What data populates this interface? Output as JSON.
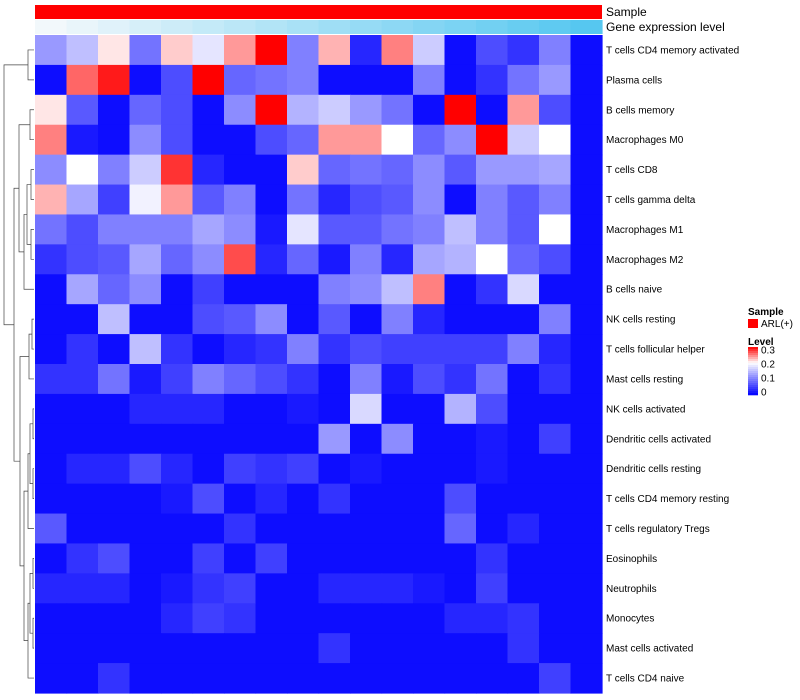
{
  "chart_data": {
    "type": "heatmap",
    "title": "",
    "annotation_tracks": [
      {
        "name": "Sample",
        "color": "#FF0000",
        "description": "single sample group bar"
      },
      {
        "name": "Gene expression level",
        "colors_low_to_high": [
          "#F2F8FB",
          "#56C7F0"
        ],
        "description": "gradient track"
      }
    ],
    "rows": [
      "T cells CD4 memory activated",
      "Plasma cells",
      "B cells memory",
      "Macrophages M0",
      "T cells CD8",
      "T cells gamma delta",
      "Macrophages M1",
      "Macrophages M2",
      "B cells naive",
      "NK cells resting",
      "T cells follicular helper",
      "Mast cells resting",
      "NK cells activated",
      "Dendritic cells activated",
      "Dendritic cells resting",
      "T cells CD4 memory resting",
      "T cells regulatory  Tregs",
      "Eosinophils",
      "Neutrophils",
      "Monocytes",
      "Mast cells activated",
      "T cells CD4 naive"
    ],
    "n_columns": 18,
    "values": [
      [
        0.12,
        0.15,
        0.21,
        0.09,
        0.22,
        0.18,
        0.24,
        0.3,
        0.1,
        0.23,
        0.03,
        0.25,
        0.16,
        0.01,
        0.06,
        0.04,
        0.1,
        null
      ],
      [
        0.01,
        0.26,
        0.29,
        0.01,
        0.06,
        0.3,
        0.08,
        0.09,
        0.1,
        0.01,
        0.01,
        0.01,
        0.1,
        0.01,
        0.04,
        0.09,
        0.12,
        null
      ],
      [
        0.21,
        0.07,
        0.01,
        0.08,
        0.06,
        0.01,
        0.11,
        0.3,
        0.14,
        0.16,
        0.12,
        0.09,
        0.01,
        0.3,
        0.01,
        0.24,
        0.06,
        null
      ],
      [
        0.25,
        0.02,
        0.01,
        0.11,
        0.06,
        0.01,
        0.01,
        0.06,
        0.08,
        0.24,
        0.24,
        0.2,
        0.08,
        0.11,
        0.3,
        0.16,
        0.2,
        null
      ],
      [
        0.11,
        0.2,
        0.1,
        0.16,
        0.28,
        0.03,
        0.01,
        0.01,
        0.22,
        0.08,
        0.09,
        0.08,
        0.11,
        0.07,
        0.12,
        0.12,
        0.13,
        null
      ],
      [
        0.23,
        0.13,
        0.05,
        0.19,
        0.24,
        0.07,
        0.1,
        0.01,
        0.09,
        0.03,
        0.06,
        0.07,
        0.11,
        0.01,
        0.1,
        0.07,
        0.1,
        null
      ],
      [
        0.09,
        0.06,
        0.1,
        0.1,
        0.1,
        0.13,
        0.11,
        0.02,
        0.18,
        0.07,
        0.07,
        0.09,
        0.1,
        0.15,
        0.1,
        0.07,
        0.2,
        null
      ],
      [
        0.04,
        0.06,
        0.07,
        0.13,
        0.08,
        0.11,
        0.27,
        0.03,
        0.08,
        0.02,
        0.1,
        0.03,
        0.13,
        0.14,
        0.2,
        0.08,
        0.06,
        null
      ],
      [
        0.01,
        0.13,
        0.08,
        0.11,
        0.01,
        0.05,
        0.01,
        0.01,
        0.01,
        0.1,
        0.11,
        0.15,
        0.25,
        0.01,
        0.04,
        0.17,
        0.01,
        null
      ],
      [
        0.01,
        0.01,
        0.15,
        0.01,
        0.01,
        0.06,
        0.07,
        0.11,
        0.01,
        0.07,
        0.01,
        0.1,
        0.03,
        0.01,
        0.01,
        0.01,
        0.1,
        null
      ],
      [
        0.01,
        0.04,
        0.01,
        0.15,
        0.04,
        0.01,
        0.03,
        0.04,
        0.1,
        0.04,
        0.06,
        0.05,
        0.05,
        0.05,
        0.05,
        0.1,
        0.03,
        null
      ],
      [
        0.04,
        0.04,
        0.09,
        0.02,
        0.05,
        0.1,
        0.08,
        0.06,
        0.04,
        0.01,
        0.1,
        0.02,
        0.06,
        0.04,
        0.09,
        0.01,
        0.04,
        null
      ],
      [
        0.01,
        0.01,
        0.01,
        0.03,
        0.03,
        0.03,
        0.01,
        0.01,
        0.02,
        0.01,
        0.17,
        0.01,
        0.01,
        0.14,
        0.06,
        0.01,
        0.01,
        null
      ],
      [
        0.01,
        0.01,
        0.01,
        0.01,
        0.01,
        0.01,
        0.01,
        0.01,
        0.01,
        0.12,
        0.01,
        0.11,
        0.01,
        0.01,
        0.02,
        0.01,
        0.05,
        null
      ],
      [
        0.01,
        0.03,
        0.03,
        0.06,
        0.03,
        0.01,
        0.05,
        0.04,
        0.05,
        0.01,
        0.02,
        0.01,
        0.01,
        0.01,
        0.02,
        0.01,
        0.01,
        null
      ],
      [
        0.01,
        0.01,
        0.01,
        0.01,
        0.02,
        0.06,
        0.01,
        0.03,
        0.01,
        0.04,
        0.01,
        0.01,
        0.01,
        0.06,
        0.01,
        0.01,
        0.01,
        null
      ],
      [
        0.07,
        0.01,
        0.01,
        0.01,
        0.01,
        0.01,
        0.04,
        0.01,
        0.01,
        0.01,
        0.01,
        0.01,
        0.01,
        0.08,
        0.01,
        0.03,
        0.01,
        null
      ],
      [
        0.01,
        0.04,
        0.06,
        0.01,
        0.01,
        0.05,
        0.01,
        0.05,
        0.01,
        0.01,
        0.01,
        0.01,
        0.01,
        0.01,
        0.04,
        0.01,
        0.01,
        null
      ],
      [
        0.03,
        0.03,
        0.03,
        0.01,
        0.02,
        0.04,
        0.05,
        0.01,
        0.01,
        0.03,
        0.03,
        0.03,
        0.02,
        0.01,
        0.05,
        0.01,
        0.01,
        null
      ],
      [
        0.01,
        0.01,
        0.01,
        0.01,
        0.03,
        0.05,
        0.04,
        0.01,
        0.01,
        0.01,
        0.01,
        0.01,
        0.01,
        0.03,
        0.03,
        0.04,
        0.01,
        null
      ],
      [
        0.01,
        0.01,
        0.01,
        0.01,
        0.01,
        0.01,
        0.01,
        0.01,
        0.01,
        0.04,
        0.01,
        0.01,
        0.01,
        0.01,
        0.01,
        0.04,
        0.01,
        null
      ],
      [
        0.01,
        0.01,
        0.04,
        0.01,
        0.01,
        0.01,
        0.01,
        0.01,
        0.01,
        0.01,
        0.01,
        0.01,
        0.01,
        0.01,
        0.01,
        0.01,
        0.05,
        null
      ]
    ],
    "color_scale": {
      "min": 0,
      "mid": 0.2,
      "max": 0.3,
      "low": "#0000FF",
      "mid_color": "#FFFFFF",
      "high": "#FF0000"
    },
    "legend": {
      "sample_title": "Sample",
      "sample_entries": [
        {
          "label": "ARL(+)",
          "color": "#FF0000"
        }
      ],
      "level_title": "Level",
      "level_ticks": [
        "0.3",
        "0.2",
        "0.1",
        "0"
      ],
      "position": "right"
    },
    "row_dendrogram": true,
    "column_dendrogram": false
  }
}
